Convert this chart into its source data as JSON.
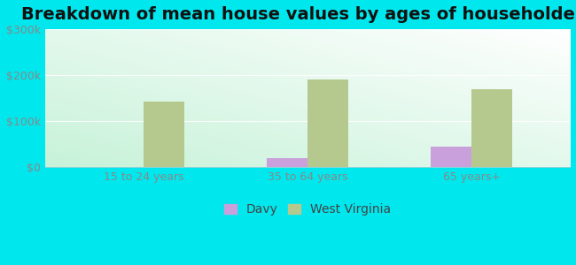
{
  "title": "Breakdown of mean house values by ages of householders",
  "categories": [
    "15 to 24 years",
    "35 to 64 years",
    "65 years+"
  ],
  "davy_values": [
    0,
    20000,
    45000
  ],
  "wv_values": [
    143000,
    190000,
    170000
  ],
  "ylim": [
    0,
    300000
  ],
  "yticks": [
    0,
    100000,
    200000,
    300000
  ],
  "ytick_labels": [
    "$0",
    "$100k",
    "$200k",
    "$300k"
  ],
  "bar_width": 0.25,
  "davy_color": "#c9a0dc",
  "wv_color": "#b5c98e",
  "background_outer": "#00e8ee",
  "legend_davy": "Davy",
  "legend_wv": "West Virginia",
  "title_fontsize": 14,
  "tick_fontsize": 9,
  "legend_fontsize": 10,
  "grid_color": "#e0e8d8",
  "tick_color": "#888888"
}
